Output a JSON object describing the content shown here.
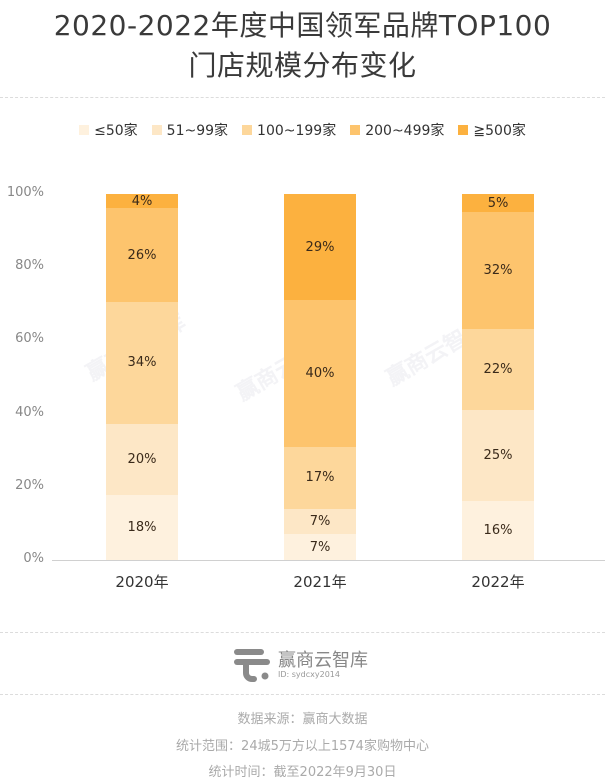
{
  "title": {
    "line1": "2020-2022年度中国领军品牌TOP100",
    "line2": "门店规模分布变化"
  },
  "legend": [
    {
      "label": "≤50家",
      "color": "#FEF1DE"
    },
    {
      "label": "51~99家",
      "color": "#FDE7C6"
    },
    {
      "label": "100~199家",
      "color": "#FDD79B"
    },
    {
      "label": "200~499家",
      "color": "#FDC46D"
    },
    {
      "label": "≧500家",
      "color": "#FCB13F"
    }
  ],
  "y_axis": {
    "ticks": [
      "100%",
      "80%",
      "60%",
      "40%",
      "20%",
      "0%"
    ]
  },
  "x_axis": {
    "labels": [
      "2020年",
      "2021年",
      "2022年"
    ]
  },
  "watermark": "赢商云智库",
  "chart_data": {
    "type": "bar",
    "stacked": true,
    "title": "2020-2022年度中国领军品牌TOP100门店规模分布变化",
    "xlabel": "",
    "ylabel": "",
    "ylim": [
      0,
      100
    ],
    "y_ticks": [
      "0%",
      "20%",
      "40%",
      "60%",
      "80%",
      "100%"
    ],
    "categories": [
      "2020年",
      "2021年",
      "2022年"
    ],
    "series": [
      {
        "name": "≤50家",
        "color": "#FEF1DE",
        "values": [
          18,
          7,
          16
        ]
      },
      {
        "name": "51~99家",
        "color": "#FDE7C6",
        "values": [
          20,
          7,
          25
        ]
      },
      {
        "name": "100~199家",
        "color": "#FDD79B",
        "values": [
          34,
          17,
          22
        ]
      },
      {
        "name": "200~499家",
        "color": "#FDC46D",
        "values": [
          26,
          40,
          32
        ]
      },
      {
        "name": "≧500家",
        "color": "#FCB13F",
        "values": [
          4,
          29,
          5
        ]
      }
    ],
    "legend_position": "top",
    "grid": false
  },
  "bars": [
    {
      "segments": [
        {
          "label": "18%",
          "pct": 18,
          "color": "#FEF1DE"
        },
        {
          "label": "20%",
          "pct": 20,
          "color": "#FDE7C6"
        },
        {
          "label": "34%",
          "pct": 34,
          "color": "#FDD79B"
        },
        {
          "label": "26%",
          "pct": 26,
          "color": "#FDC46D"
        },
        {
          "label": "4%",
          "pct": 4,
          "color": "#FCB13F"
        }
      ]
    },
    {
      "segments": [
        {
          "label": "7%",
          "pct": 7,
          "color": "#FEF1DE"
        },
        {
          "label": "7%",
          "pct": 7,
          "color": "#FDE7C6"
        },
        {
          "label": "17%",
          "pct": 17,
          "color": "#FDD79B"
        },
        {
          "label": "40%",
          "pct": 40,
          "color": "#FDC46D"
        },
        {
          "label": "29%",
          "pct": 29,
          "color": "#FCB13F"
        }
      ]
    },
    {
      "segments": [
        {
          "label": "16%",
          "pct": 16,
          "color": "#FEF1DE"
        },
        {
          "label": "25%",
          "pct": 25,
          "color": "#FDE7C6"
        },
        {
          "label": "22%",
          "pct": 22,
          "color": "#FDD79B"
        },
        {
          "label": "32%",
          "pct": 32,
          "color": "#FDC46D"
        },
        {
          "label": "5%",
          "pct": 5,
          "color": "#FCB13F"
        }
      ]
    }
  ],
  "brand": {
    "name": "赢商云智库",
    "id": "ID: sydcxy2014"
  },
  "footer": {
    "source": "数据来源：赢商大数据",
    "scope": "统计范围：24城5万方以上1574家购物中心",
    "time": "统计时间：截至2022年9月30日"
  }
}
